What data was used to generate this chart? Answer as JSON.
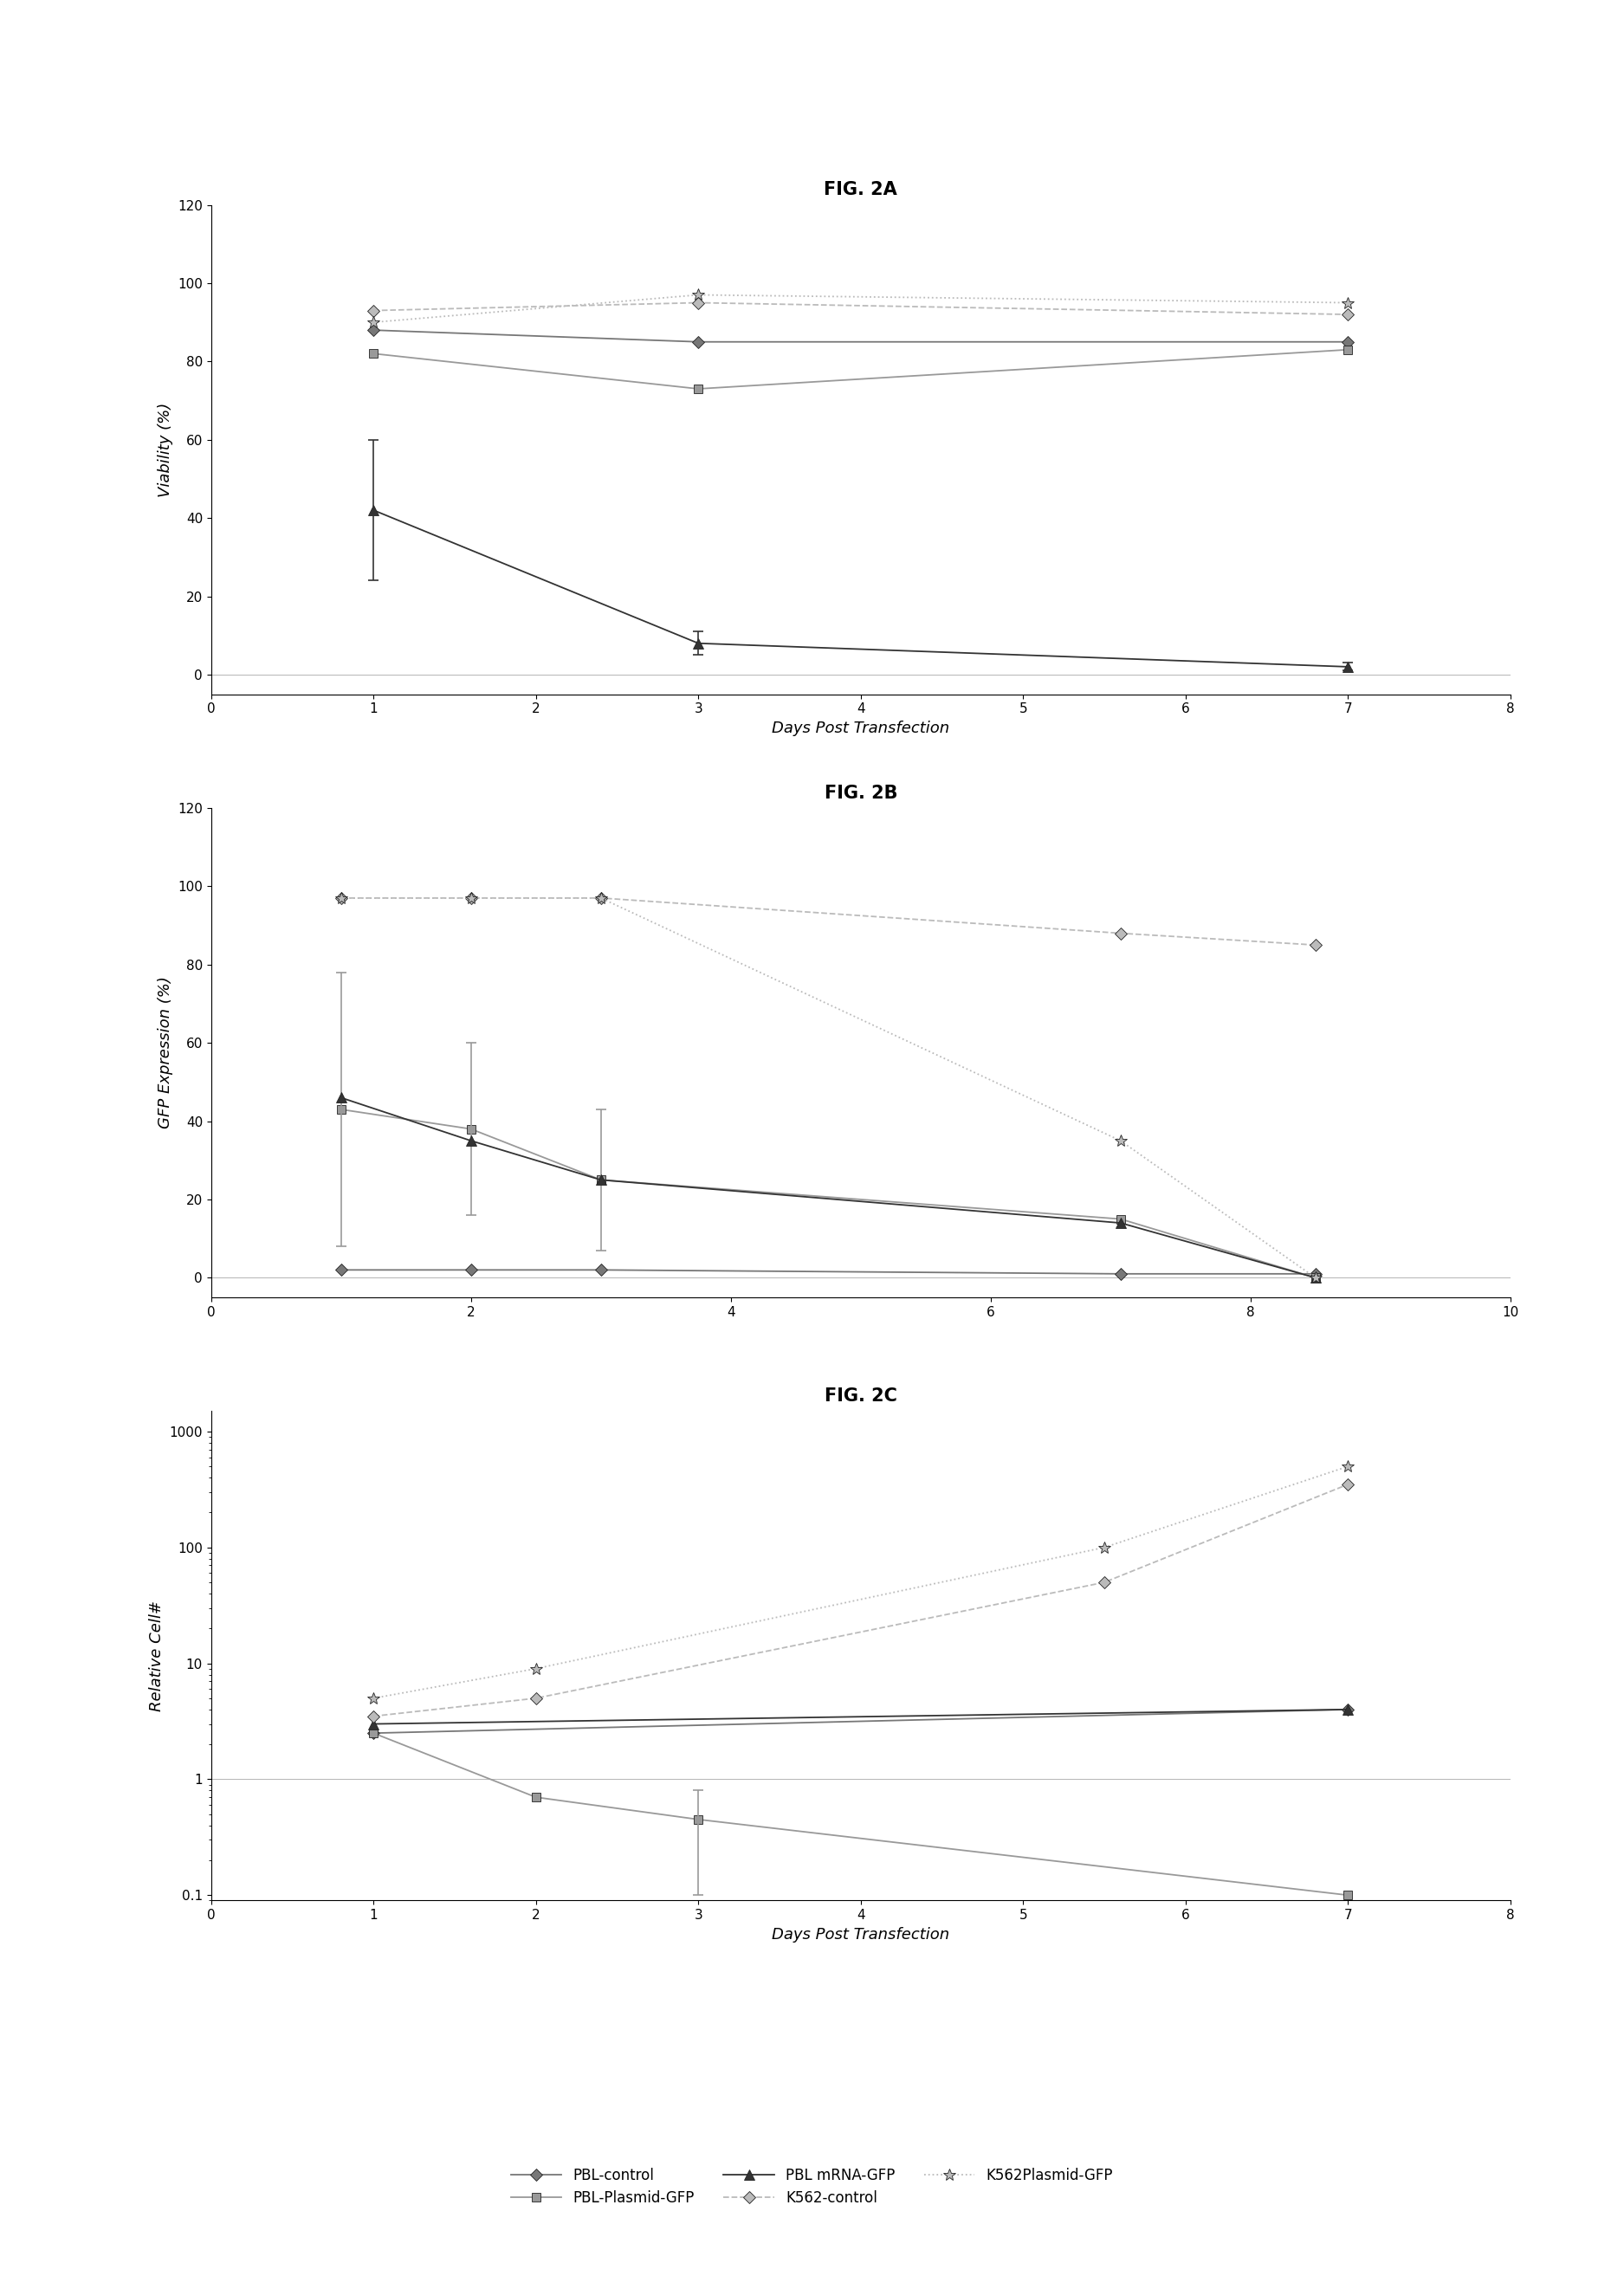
{
  "fig2a": {
    "title": "FIG. 2A",
    "xlabel": "Days Post Transfection",
    "ylabel": "Viability (%)",
    "xlim": [
      0,
      8
    ],
    "ylim": [
      -5,
      120
    ],
    "xticks": [
      0,
      1,
      2,
      3,
      4,
      5,
      6,
      7,
      8
    ],
    "yticks": [
      0,
      20,
      40,
      60,
      80,
      100,
      120
    ],
    "series": {
      "PBL-control": {
        "x": [
          1,
          3,
          7
        ],
        "y": [
          88,
          85,
          85
        ],
        "yerr": [
          null,
          null,
          null
        ],
        "marker": "D",
        "linestyle": "-",
        "color": "#777777",
        "ms": 7
      },
      "PBL-Plasmid-GFP": {
        "x": [
          1,
          3,
          7
        ],
        "y": [
          82,
          73,
          83
        ],
        "yerr": [
          null,
          null,
          null
        ],
        "marker": "s",
        "linestyle": "-",
        "color": "#999999",
        "ms": 7
      },
      "PBL mRNA-GFP": {
        "x": [
          1,
          3,
          7
        ],
        "y": [
          42,
          8,
          2
        ],
        "yerr": [
          18,
          3,
          1
        ],
        "marker": "^",
        "linestyle": "-",
        "color": "#333333",
        "ms": 8
      },
      "K562-control": {
        "x": [
          1,
          3,
          7
        ],
        "y": [
          93,
          95,
          92
        ],
        "yerr": [
          null,
          null,
          null
        ],
        "marker": "D",
        "linestyle": "--",
        "color": "#bbbbbb",
        "ms": 7
      },
      "K562Plasmid-GFP": {
        "x": [
          1,
          3,
          7
        ],
        "y": [
          90,
          97,
          95
        ],
        "yerr": [
          null,
          null,
          null
        ],
        "marker": "*",
        "linestyle": ":",
        "color": "#bbbbbb",
        "ms": 10
      }
    }
  },
  "fig2b": {
    "title": "FIG. 2B",
    "xlabel": "",
    "ylabel": "GFP Expression (%)",
    "xlim": [
      0,
      10
    ],
    "ylim": [
      -5,
      120
    ],
    "xticks": [
      0,
      2,
      4,
      6,
      8,
      10
    ],
    "yticks": [
      0,
      20,
      40,
      60,
      80,
      100,
      120
    ],
    "series": {
      "PBL-control": {
        "x": [
          1,
          2,
          3,
          7,
          8.5
        ],
        "y": [
          2,
          2,
          2,
          1,
          1
        ],
        "yerr": [
          null,
          null,
          null,
          null,
          null
        ],
        "marker": "D",
        "linestyle": "-",
        "color": "#777777",
        "ms": 7
      },
      "PBL-Plasmid-GFP": {
        "x": [
          1,
          2,
          3,
          7,
          8.5
        ],
        "y": [
          43,
          38,
          25,
          15,
          0
        ],
        "yerr": [
          35,
          22,
          18,
          null,
          null
        ],
        "marker": "s",
        "linestyle": "-",
        "color": "#999999",
        "ms": 7
      },
      "PBL mRNA-GFP": {
        "x": [
          1,
          2,
          3,
          7,
          8.5
        ],
        "y": [
          46,
          35,
          25,
          14,
          0
        ],
        "yerr": [
          null,
          null,
          null,
          null,
          null
        ],
        "marker": "^",
        "linestyle": "-",
        "color": "#333333",
        "ms": 8
      },
      "K562-control": {
        "x": [
          1,
          2,
          3,
          7,
          8.5
        ],
        "y": [
          97,
          97,
          97,
          88,
          85
        ],
        "yerr": [
          null,
          null,
          null,
          null,
          null
        ],
        "marker": "D",
        "linestyle": "--",
        "color": "#bbbbbb",
        "ms": 7
      },
      "K562Plasmid-GFP": {
        "x": [
          1,
          2,
          3,
          7,
          8.5
        ],
        "y": [
          97,
          97,
          97,
          35,
          0
        ],
        "yerr": [
          null,
          null,
          null,
          null,
          null
        ],
        "marker": "*",
        "linestyle": ":",
        "color": "#bbbbbb",
        "ms": 10
      }
    }
  },
  "fig2c": {
    "title": "FIG. 2C",
    "xlabel": "Days Post Transfection",
    "ylabel": "Relative Cell#",
    "xlim": [
      0,
      8
    ],
    "ylim_log": [
      0.09,
      1500
    ],
    "xticks": [
      0,
      1,
      2,
      3,
      4,
      5,
      6,
      7,
      8
    ],
    "yticks": [
      0.1,
      1,
      10,
      100,
      1000
    ],
    "series": {
      "PBL-control": {
        "x": [
          1,
          7
        ],
        "y": [
          2.5,
          4.0
        ],
        "yerr": [
          null,
          null
        ],
        "marker": "D",
        "linestyle": "-",
        "color": "#777777",
        "ms": 7
      },
      "PBL-Plasmid-GFP": {
        "x": [
          1,
          2,
          3,
          7
        ],
        "y": [
          2.5,
          0.7,
          0.45,
          0.1
        ],
        "yerr": [
          null,
          null,
          0.35,
          null
        ],
        "marker": "s",
        "linestyle": "-",
        "color": "#999999",
        "ms": 7
      },
      "PBL mRNA-GFP": {
        "x": [
          1,
          7
        ],
        "y": [
          3.0,
          4.0
        ],
        "yerr": [
          null,
          null
        ],
        "marker": "^",
        "linestyle": "-",
        "color": "#333333",
        "ms": 8
      },
      "K562-control": {
        "x": [
          1,
          2,
          5.5,
          7
        ],
        "y": [
          3.5,
          5,
          50,
          350
        ],
        "yerr": [
          null,
          null,
          null,
          null
        ],
        "marker": "D",
        "linestyle": "--",
        "color": "#bbbbbb",
        "ms": 7
      },
      "K562Plasmid-GFP": {
        "x": [
          1,
          2,
          5.5,
          7
        ],
        "y": [
          5,
          9,
          100,
          500
        ],
        "yerr": [
          null,
          null,
          null,
          null
        ],
        "marker": "*",
        "linestyle": ":",
        "color": "#bbbbbb",
        "ms": 10
      }
    }
  },
  "legend": {
    "entries": [
      "PBL-control",
      "PBL-Plasmid-GFP",
      "PBL mRNA-GFP",
      "K562-control",
      "K562Plasmid-GFP"
    ],
    "markers": [
      "D",
      "s",
      "^",
      "D",
      "*"
    ],
    "linestyles": [
      "-",
      "-",
      "-",
      "--",
      ":"
    ],
    "colors": [
      "#777777",
      "#999999",
      "#333333",
      "#bbbbbb",
      "#bbbbbb"
    ],
    "ms": [
      7,
      7,
      8,
      7,
      10
    ]
  },
  "bg_color": "#ffffff",
  "title_fontsize": 15,
  "label_fontsize": 13,
  "tick_fontsize": 11
}
